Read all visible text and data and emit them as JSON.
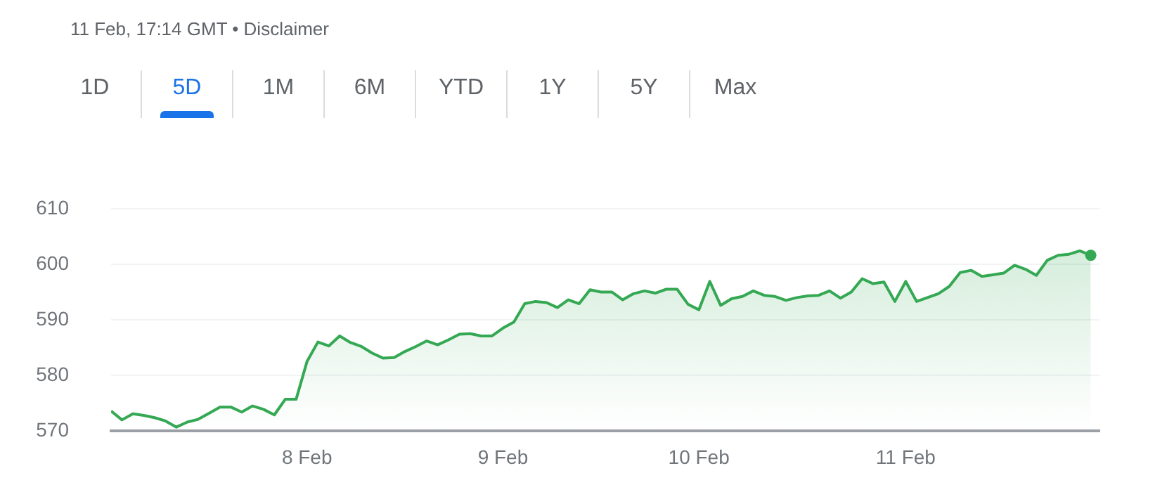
{
  "chart_data": {
    "type": "area",
    "subtitle": "11 Feb, 17:14 GMT • Disclaimer",
    "annotations": [
      "1D",
      "5D",
      "1M",
      "6M",
      "YTD",
      "1Y",
      "5Y",
      "Max"
    ],
    "categories": [
      null,
      null,
      null,
      null,
      null,
      null,
      null,
      null,
      null,
      null,
      null,
      null,
      null,
      null,
      null,
      null,
      null,
      null,
      "8 Feb",
      null,
      null,
      null,
      null,
      null,
      null,
      null,
      null,
      null,
      null,
      null,
      null,
      null,
      null,
      null,
      null,
      null,
      "9 Feb",
      null,
      null,
      null,
      null,
      null,
      null,
      null,
      null,
      null,
      null,
      null,
      null,
      null,
      null,
      null,
      null,
      null,
      "10 Feb",
      null,
      null,
      null,
      null,
      null,
      null,
      null,
      null,
      null,
      null,
      null,
      null,
      null,
      null,
      null,
      null,
      null,
      null,
      "11 Feb",
      null,
      null,
      null,
      null,
      null,
      null,
      null,
      null,
      null,
      null,
      null,
      null,
      null,
      null,
      null,
      null,
      null
    ],
    "ylim": [
      570,
      610
    ],
    "yticks": [
      570,
      580,
      590,
      600,
      610
    ],
    "grid": "y",
    "series": [
      {
        "color": "#34a853",
        "values": [
          573.6,
          572.0,
          573.1,
          572.8,
          572.4,
          571.8,
          570.7,
          571.6,
          572.1,
          573.2,
          574.3,
          574.3,
          573.4,
          574.5,
          573.9,
          572.9,
          575.7,
          575.7,
          582.5,
          586.0,
          585.3,
          587.1,
          585.9,
          585.2,
          584.0,
          583.1,
          583.2,
          584.3,
          585.2,
          586.2,
          585.5,
          586.4,
          587.4,
          587.5,
          587.1,
          587.1,
          588.5,
          589.6,
          592.9,
          593.3,
          593.1,
          592.2,
          593.6,
          592.9,
          595.4,
          595.0,
          595.0,
          593.6,
          594.7,
          595.2,
          594.8,
          595.5,
          595.5,
          592.8,
          591.8,
          596.9,
          592.6,
          593.8,
          594.2,
          595.2,
          594.4,
          594.2,
          593.5,
          594.0,
          594.3,
          594.4,
          595.2,
          593.9,
          595.0,
          597.4,
          596.5,
          596.8,
          593.3,
          596.9,
          593.3,
          594.0,
          594.7,
          596.0,
          598.5,
          598.9,
          597.8,
          598.1,
          598.4,
          599.8,
          599.1,
          598.0,
          600.7,
          601.6,
          601.8,
          602.4,
          601.6
        ]
      }
    ]
  }
}
